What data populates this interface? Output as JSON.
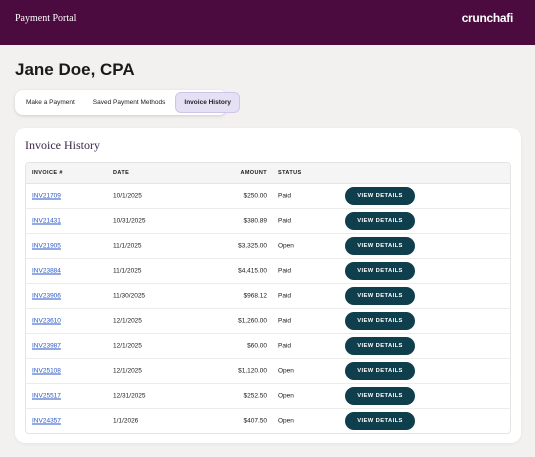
{
  "header": {
    "title": "Payment Portal",
    "logo": "crunchafi"
  },
  "page": {
    "name": "Jane Doe, CPA"
  },
  "tabs": [
    "Make a Payment",
    "Saved Payment Methods",
    "Invoice History"
  ],
  "active_tab": 2,
  "card": {
    "title": "Invoice History"
  },
  "table": {
    "columns": [
      "INVOICE #",
      "DATE",
      "AMOUNT",
      "STATUS"
    ],
    "rows": [
      {
        "invoice": "INV21709",
        "date": "10/1/2025",
        "amount": "$250.00",
        "status": "Paid",
        "action": "VIEW DETAILS"
      },
      {
        "invoice": "INV21431",
        "date": "10/31/2025",
        "amount": "$380.89",
        "status": "Paid",
        "action": "VIEW DETAILS"
      },
      {
        "invoice": "INV21905",
        "date": "11/1/2025",
        "amount": "$3,325.00",
        "status": "Open",
        "action": "VIEW DETAILS"
      },
      {
        "invoice": "INV23884",
        "date": "11/1/2025",
        "amount": "$4,415.00",
        "status": "Paid",
        "action": "VIEW DETAILS"
      },
      {
        "invoice": "INV23906",
        "date": "11/30/2025",
        "amount": "$968.12",
        "status": "Paid",
        "action": "VIEW DETAILS"
      },
      {
        "invoice": "INV23610",
        "date": "12/1/2025",
        "amount": "$1,260.00",
        "status": "Paid",
        "action": "VIEW DETAILS"
      },
      {
        "invoice": "INV23987",
        "date": "12/1/2025",
        "amount": "$60.00",
        "status": "Paid",
        "action": "VIEW DETAILS"
      },
      {
        "invoice": "INV25108",
        "date": "12/1/2025",
        "amount": "$1,120.00",
        "status": "Open",
        "action": "VIEW DETAILS"
      },
      {
        "invoice": "INV25517",
        "date": "12/31/2025",
        "amount": "$252.50",
        "status": "Open",
        "action": "VIEW DETAILS"
      },
      {
        "invoice": "INV24357",
        "date": "1/1/2026",
        "amount": "$407.50",
        "status": "Open",
        "action": "VIEW DETAILS"
      }
    ]
  }
}
